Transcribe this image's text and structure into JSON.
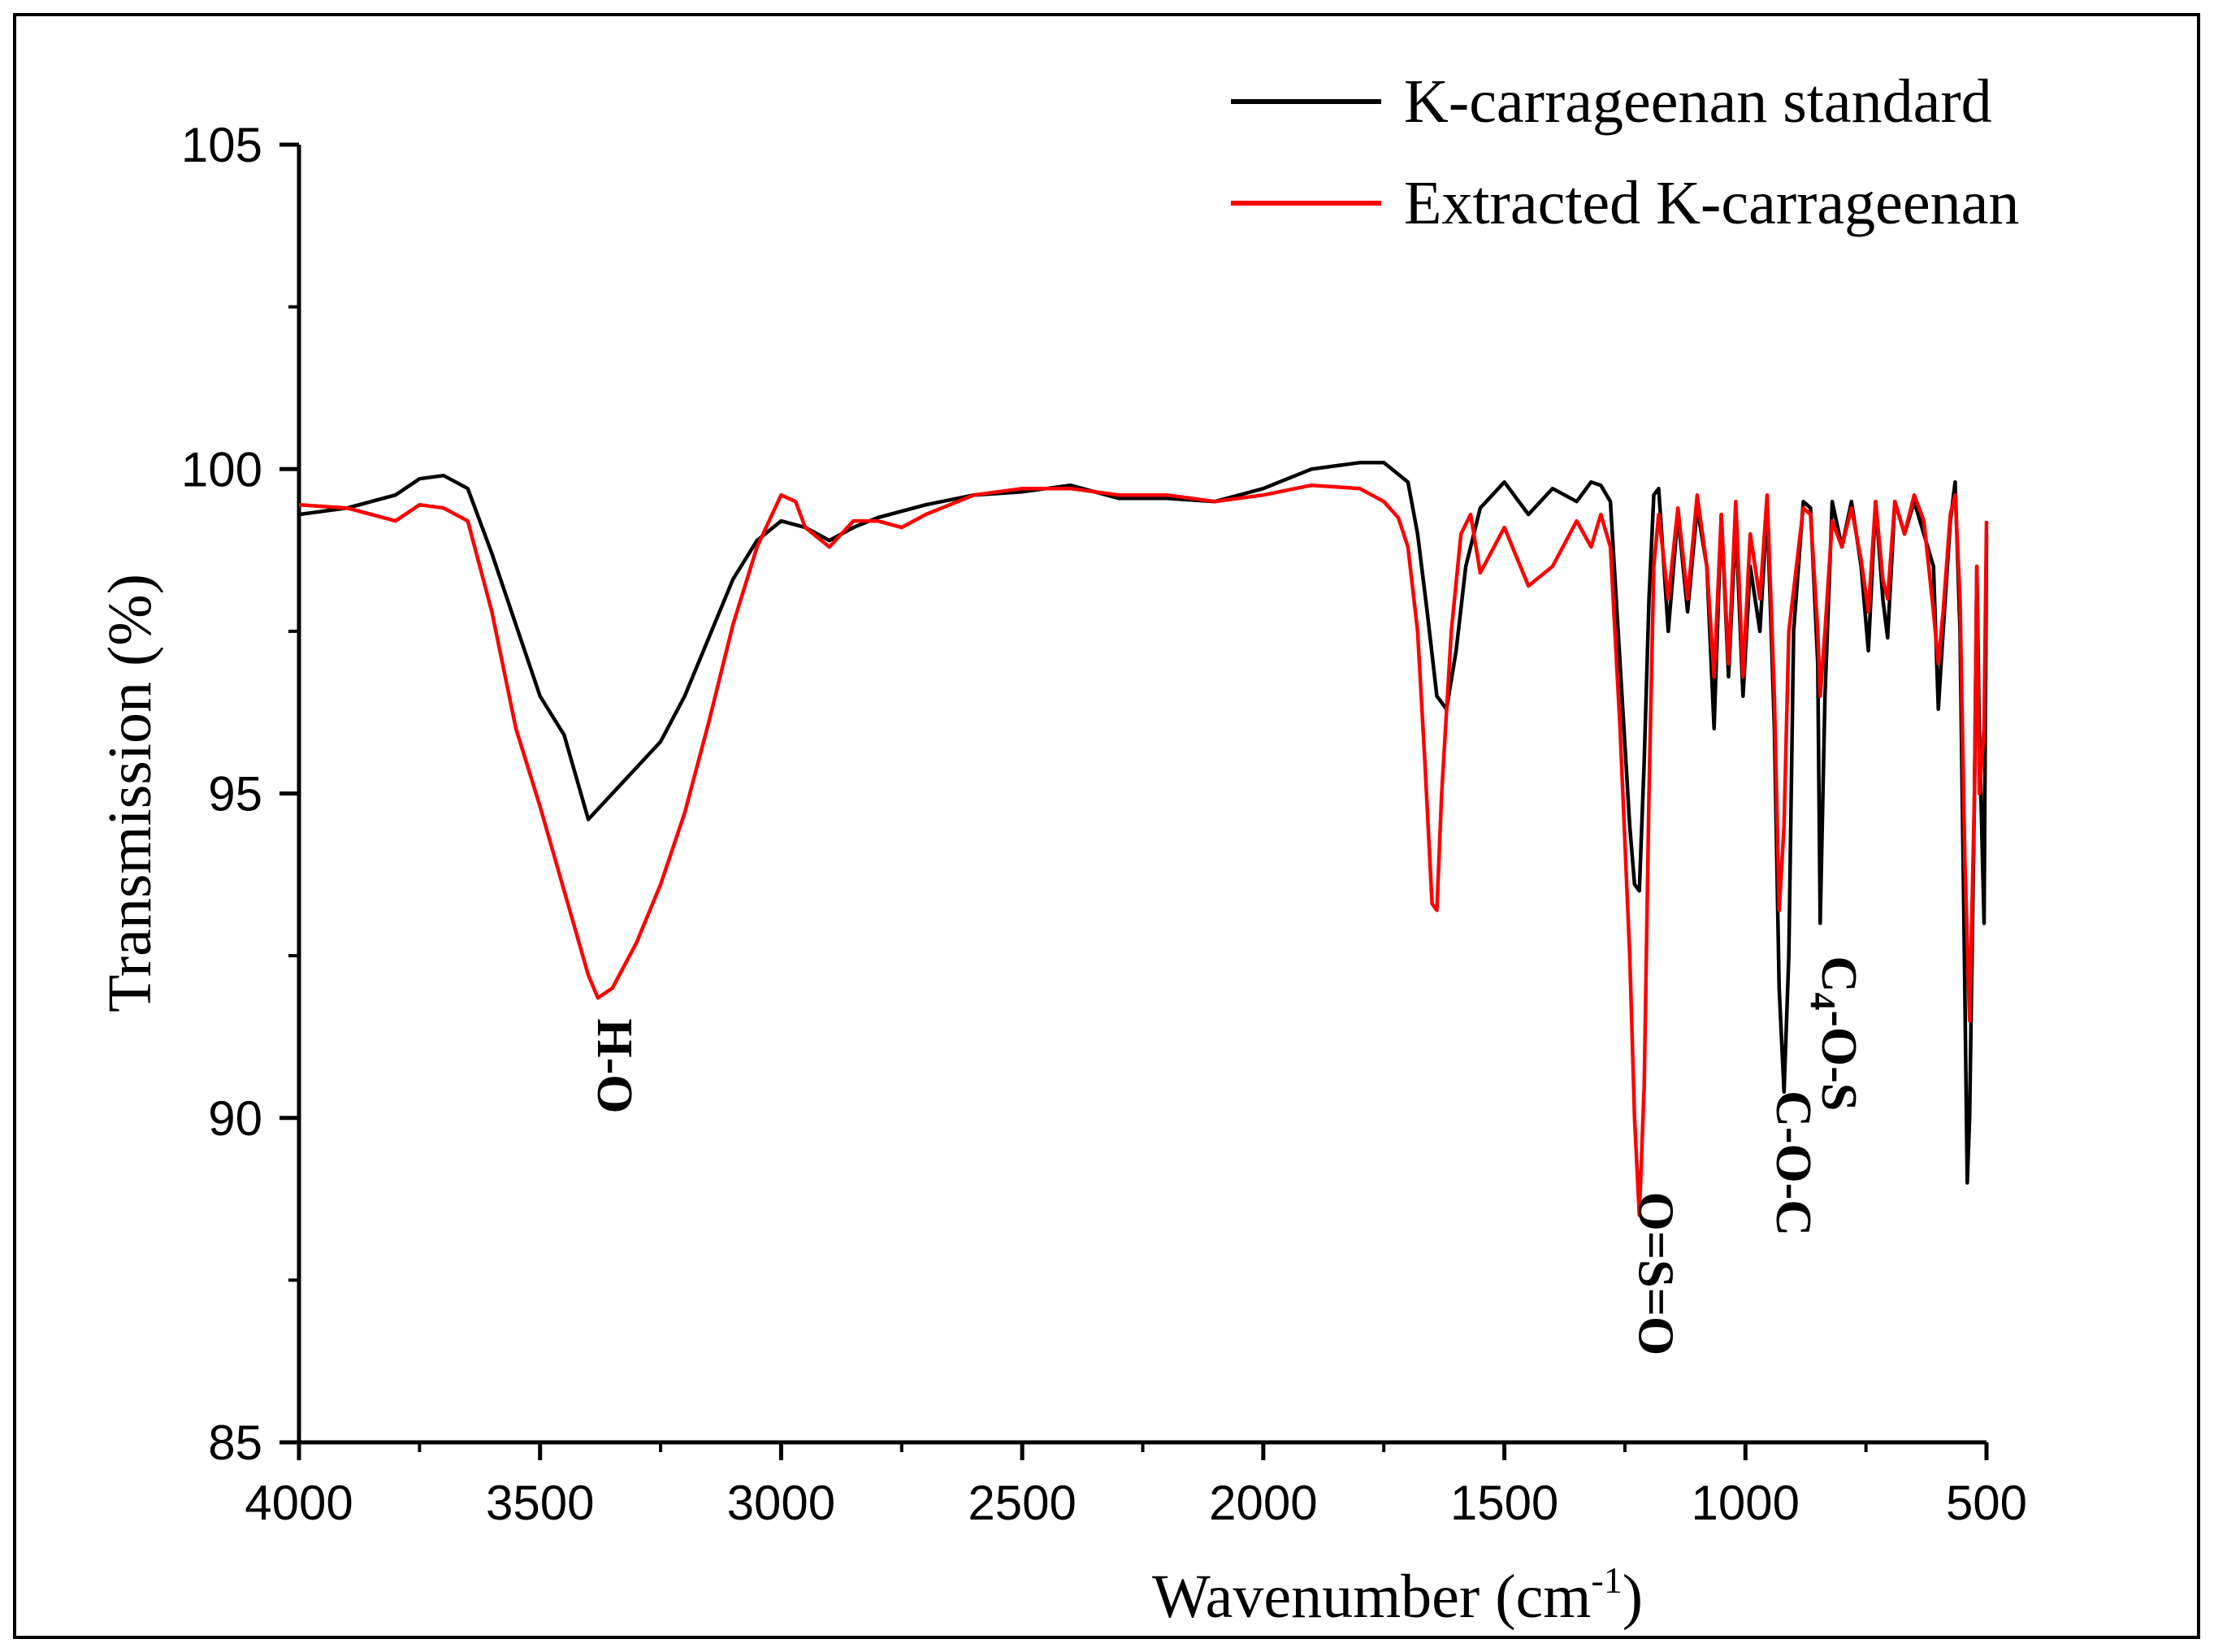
{
  "chart_data": {
    "type": "line",
    "title": "",
    "xlabel": "Wavenumber (cm",
    "xlabel_sup": "-1",
    "xlabel_close": ")",
    "ylabel": "Transmission (%)",
    "xlim": [
      4000,
      500
    ],
    "ylim": [
      85,
      105
    ],
    "x_ticks": [
      4000,
      3500,
      3000,
      2500,
      2000,
      1500,
      1000,
      500
    ],
    "y_ticks": [
      85,
      90,
      95,
      100,
      105
    ],
    "x_tick_labels": [
      "4000",
      "3500",
      "3000",
      "2500",
      "2000",
      "1500",
      "1000",
      "500"
    ],
    "y_tick_labels": [
      "85",
      "90",
      "95",
      "100",
      "105"
    ],
    "grid": false,
    "legend_position": "top-right",
    "series": [
      {
        "name": "K-carrageenan standard",
        "color": "#000000",
        "points": [
          [
            4000,
            99.3
          ],
          [
            3900,
            99.4
          ],
          [
            3800,
            99.6
          ],
          [
            3750,
            99.85
          ],
          [
            3700,
            99.9
          ],
          [
            3650,
            99.7
          ],
          [
            3600,
            98.7
          ],
          [
            3550,
            97.6
          ],
          [
            3500,
            96.5
          ],
          [
            3450,
            95.9
          ],
          [
            3400,
            94.6
          ],
          [
            3350,
            95.0
          ],
          [
            3300,
            95.4
          ],
          [
            3250,
            95.8
          ],
          [
            3200,
            96.5
          ],
          [
            3150,
            97.4
          ],
          [
            3100,
            98.3
          ],
          [
            3050,
            98.9
          ],
          [
            3000,
            99.2
          ],
          [
            2950,
            99.1
          ],
          [
            2900,
            98.9
          ],
          [
            2850,
            99.1
          ],
          [
            2800,
            99.25
          ],
          [
            2700,
            99.45
          ],
          [
            2600,
            99.6
          ],
          [
            2500,
            99.65
          ],
          [
            2400,
            99.75
          ],
          [
            2300,
            99.55
          ],
          [
            2200,
            99.55
          ],
          [
            2100,
            99.5
          ],
          [
            2000,
            99.7
          ],
          [
            1900,
            100.0
          ],
          [
            1800,
            100.1
          ],
          [
            1750,
            100.1
          ],
          [
            1700,
            99.8
          ],
          [
            1680,
            99.0
          ],
          [
            1660,
            97.8
          ],
          [
            1640,
            96.5
          ],
          [
            1620,
            96.3
          ],
          [
            1600,
            97.2
          ],
          [
            1580,
            98.5
          ],
          [
            1550,
            99.4
          ],
          [
            1500,
            99.8
          ],
          [
            1450,
            99.3
          ],
          [
            1400,
            99.7
          ],
          [
            1350,
            99.5
          ],
          [
            1320,
            99.8
          ],
          [
            1300,
            99.75
          ],
          [
            1280,
            99.5
          ],
          [
            1260,
            97.0
          ],
          [
            1240,
            94.5
          ],
          [
            1230,
            93.6
          ],
          [
            1220,
            93.5
          ],
          [
            1210,
            95.5
          ],
          [
            1200,
            98.0
          ],
          [
            1190,
            99.6
          ],
          [
            1180,
            99.7
          ],
          [
            1160,
            97.5
          ],
          [
            1140,
            99.3
          ],
          [
            1120,
            97.8
          ],
          [
            1100,
            99.4
          ],
          [
            1080,
            98.5
          ],
          [
            1065,
            96.0
          ],
          [
            1050,
            99.3
          ],
          [
            1035,
            96.8
          ],
          [
            1020,
            99.2
          ],
          [
            1005,
            96.5
          ],
          [
            990,
            98.5
          ],
          [
            970,
            97.5
          ],
          [
            955,
            99.4
          ],
          [
            940,
            96.0
          ],
          [
            930,
            92.0
          ],
          [
            920,
            90.4
          ],
          [
            910,
            92.5
          ],
          [
            900,
            97.5
          ],
          [
            880,
            99.5
          ],
          [
            865,
            99.4
          ],
          [
            850,
            97.0
          ],
          [
            845,
            93.0
          ],
          [
            835,
            96.5
          ],
          [
            820,
            99.5
          ],
          [
            800,
            98.8
          ],
          [
            780,
            99.5
          ],
          [
            760,
            98.5
          ],
          [
            745,
            97.2
          ],
          [
            730,
            99.5
          ],
          [
            715,
            98.0
          ],
          [
            705,
            97.4
          ],
          [
            690,
            99.5
          ],
          [
            670,
            99.0
          ],
          [
            650,
            99.5
          ],
          [
            630,
            99.0
          ],
          [
            610,
            98.5
          ],
          [
            600,
            96.3
          ],
          [
            590,
            97.5
          ],
          [
            575,
            99.2
          ],
          [
            565,
            99.8
          ],
          [
            555,
            97.5
          ],
          [
            545,
            92.0
          ],
          [
            540,
            89.0
          ],
          [
            535,
            90.0
          ],
          [
            525,
            95.0
          ],
          [
            520,
            98.5
          ],
          [
            515,
            96.0
          ],
          [
            505,
            93.0
          ],
          [
            500,
            99.0
          ]
        ]
      },
      {
        "name": "Extracted K-carrageenan",
        "color": "#ff0000",
        "points": [
          [
            4000,
            99.45
          ],
          [
            3900,
            99.4
          ],
          [
            3850,
            99.3
          ],
          [
            3800,
            99.2
          ],
          [
            3750,
            99.45
          ],
          [
            3700,
            99.4
          ],
          [
            3650,
            99.2
          ],
          [
            3600,
            97.8
          ],
          [
            3550,
            96.0
          ],
          [
            3500,
            94.8
          ],
          [
            3450,
            93.5
          ],
          [
            3400,
            92.2
          ],
          [
            3380,
            91.85
          ],
          [
            3350,
            92.0
          ],
          [
            3300,
            92.7
          ],
          [
            3250,
            93.6
          ],
          [
            3200,
            94.7
          ],
          [
            3150,
            96.1
          ],
          [
            3100,
            97.6
          ],
          [
            3050,
            98.8
          ],
          [
            3000,
            99.6
          ],
          [
            2970,
            99.5
          ],
          [
            2950,
            99.1
          ],
          [
            2900,
            98.8
          ],
          [
            2850,
            99.2
          ],
          [
            2800,
            99.2
          ],
          [
            2750,
            99.1
          ],
          [
            2700,
            99.3
          ],
          [
            2600,
            99.6
          ],
          [
            2500,
            99.7
          ],
          [
            2400,
            99.7
          ],
          [
            2300,
            99.6
          ],
          [
            2200,
            99.6
          ],
          [
            2100,
            99.5
          ],
          [
            2000,
            99.6
          ],
          [
            1900,
            99.75
          ],
          [
            1800,
            99.7
          ],
          [
            1750,
            99.5
          ],
          [
            1720,
            99.25
          ],
          [
            1700,
            98.8
          ],
          [
            1680,
            97.5
          ],
          [
            1665,
            95.5
          ],
          [
            1650,
            93.3
          ],
          [
            1640,
            93.2
          ],
          [
            1630,
            95.0
          ],
          [
            1610,
            97.5
          ],
          [
            1590,
            99.0
          ],
          [
            1570,
            99.3
          ],
          [
            1550,
            98.4
          ],
          [
            1500,
            99.1
          ],
          [
            1450,
            98.2
          ],
          [
            1400,
            98.5
          ],
          [
            1350,
            99.2
          ],
          [
            1320,
            98.8
          ],
          [
            1300,
            99.3
          ],
          [
            1280,
            98.8
          ],
          [
            1260,
            96.0
          ],
          [
            1240,
            92.5
          ],
          [
            1230,
            90.0
          ],
          [
            1220,
            88.5
          ],
          [
            1210,
            90.5
          ],
          [
            1200,
            95.0
          ],
          [
            1190,
            98.5
          ],
          [
            1180,
            99.3
          ],
          [
            1160,
            98.0
          ],
          [
            1140,
            99.4
          ],
          [
            1120,
            98.0
          ],
          [
            1100,
            99.6
          ],
          [
            1080,
            98.5
          ],
          [
            1065,
            96.8
          ],
          [
            1050,
            99.3
          ],
          [
            1035,
            97.0
          ],
          [
            1020,
            99.5
          ],
          [
            1005,
            96.8
          ],
          [
            990,
            99.0
          ],
          [
            970,
            98.0
          ],
          [
            955,
            99.6
          ],
          [
            940,
            96.5
          ],
          [
            930,
            93.2
          ],
          [
            920,
            94.5
          ],
          [
            910,
            97.5
          ],
          [
            880,
            99.4
          ],
          [
            865,
            99.3
          ],
          [
            850,
            97.5
          ],
          [
            845,
            96.5
          ],
          [
            835,
            97.5
          ],
          [
            820,
            99.2
          ],
          [
            800,
            98.8
          ],
          [
            780,
            99.4
          ],
          [
            760,
            98.6
          ],
          [
            745,
            97.8
          ],
          [
            730,
            99.5
          ],
          [
            715,
            98.3
          ],
          [
            705,
            98.0
          ],
          [
            690,
            99.5
          ],
          [
            670,
            99.0
          ],
          [
            650,
            99.6
          ],
          [
            630,
            99.2
          ],
          [
            610,
            97.8
          ],
          [
            600,
            97.0
          ],
          [
            590,
            97.8
          ],
          [
            575,
            99.3
          ],
          [
            565,
            99.6
          ],
          [
            555,
            98.0
          ],
          [
            545,
            94.0
          ],
          [
            535,
            91.5
          ],
          [
            525,
            95.0
          ],
          [
            520,
            98.5
          ],
          [
            515,
            95.0
          ],
          [
            505,
            96.0
          ],
          [
            500,
            99.2
          ]
        ]
      }
    ],
    "annotations": [
      {
        "text": "H-O",
        "x": 3380,
        "y": 90.8
      },
      {
        "text": "O=S=O",
        "x": 1220,
        "y": 87.6
      },
      {
        "text": "C-O-C",
        "x": 935,
        "y": 89.3
      },
      {
        "text": "C",
        "sub": "4",
        "rest": "-O-S",
        "x": 840,
        "y": 91.3
      }
    ]
  }
}
